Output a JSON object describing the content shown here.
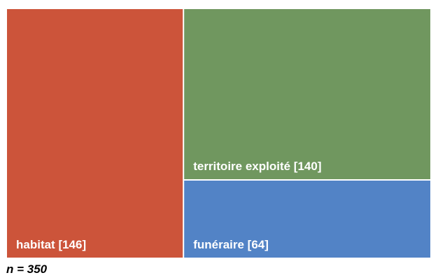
{
  "chart_data": {
    "type": "treemap",
    "categories": [
      "habitat",
      "territoire exploité",
      "funéraire"
    ],
    "values": [
      146,
      140,
      64
    ],
    "value_labels": [
      "habitat [146]",
      "territoire exploité [140]",
      "funéraire [64]"
    ],
    "colors": [
      "#cc543a",
      "#70975f",
      "#5283c6"
    ],
    "annotation": "n = 350"
  }
}
